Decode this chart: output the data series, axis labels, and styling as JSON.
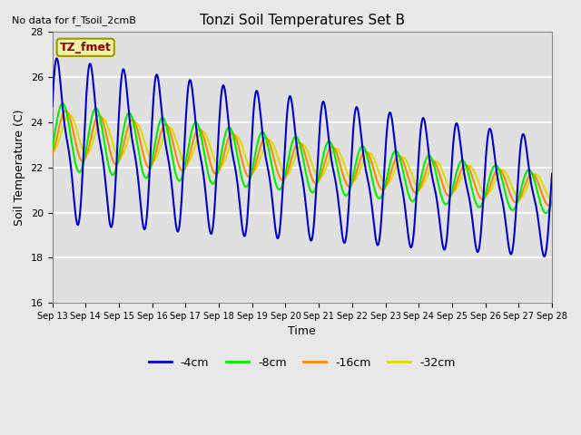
{
  "title": "Tonzi Soil Temperatures Set B",
  "xlabel": "Time",
  "ylabel": "Soil Temperature (C)",
  "no_data_text": "No data for f_Tsoil_2cmB",
  "legend_label": "TZ_fmet",
  "ylim": [
    16,
    28
  ],
  "yticks": [
    16,
    18,
    20,
    22,
    24,
    26,
    28
  ],
  "line_colors": {
    "-4cm": "#0000cc",
    "-8cm": "#00ee00",
    "-16cm": "#ff8800",
    "-32cm": "#dddd00"
  },
  "background_color": "#e8e8e8",
  "plot_bg_color": "#e0e0e0",
  "grid_color": "#cccccc",
  "start_day": 13,
  "end_day": 28,
  "num_points": 720,
  "figwidth": 6.4,
  "figheight": 4.8,
  "dpi": 100
}
